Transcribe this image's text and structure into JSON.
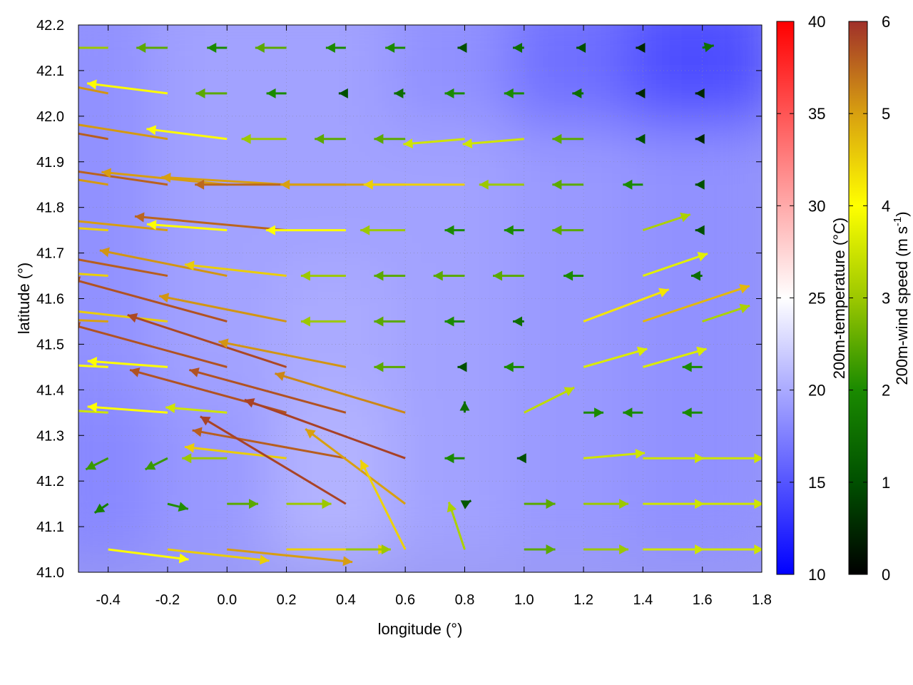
{
  "chart_data": {
    "type": "vector-field-map",
    "xlabel": "longitude (°)",
    "ylabel": "latitude (°)",
    "xlim": [
      -0.5,
      1.8
    ],
    "ylim": [
      41.0,
      42.2
    ],
    "xticks": [
      "-0.4",
      "-0.2",
      "0.0",
      "0.2",
      "0.4",
      "0.6",
      "0.8",
      "1.0",
      "1.2",
      "1.4",
      "1.6",
      "1.8"
    ],
    "yticks": [
      "41.0",
      "41.1",
      "41.2",
      "41.3",
      "41.4",
      "41.5",
      "41.6",
      "41.7",
      "41.8",
      "41.9",
      "42.0",
      "42.1",
      "42.2"
    ],
    "grid": true,
    "temperature_colorbar": {
      "label": "200m-temperature (°C)",
      "range": [
        10,
        40
      ],
      "ticks": [
        "10",
        "15",
        "20",
        "25",
        "30",
        "35",
        "40"
      ],
      "colors": {
        "low": "#0000ff",
        "mid": "#ffffff",
        "high": "#ff0000"
      }
    },
    "wind_colorbar": {
      "label": "200m-wind speed (m s",
      "label_sup": "-1",
      "label_end": ")",
      "range": [
        0,
        6
      ],
      "ticks": [
        "0",
        "1",
        "2",
        "3",
        "4",
        "5",
        "6"
      ],
      "colors": [
        "#000000",
        "#005000",
        "#1a8a00",
        "#9cc800",
        "#ffff00",
        "#d8a010",
        "#a0302a"
      ]
    },
    "temperature_field": {
      "lon": [
        -0.4,
        0.0,
        0.4,
        0.8,
        1.2,
        1.6
      ],
      "lat": [
        42.1,
        41.8,
        41.5,
        41.2
      ],
      "values_c": [
        [
          18.5,
          19.5,
          19.5,
          18.5,
          16.5,
          14.5
        ],
        [
          18.5,
          19.5,
          19.5,
          19.5,
          19,
          18.5
        ],
        [
          18.5,
          19.5,
          20,
          19.5,
          19,
          18.5
        ],
        [
          18,
          19,
          20.5,
          19.5,
          19,
          18.5
        ]
      ]
    },
    "wind_field": {
      "lon": [
        -0.4,
        -0.2,
        0.0,
        0.2,
        0.4,
        0.6,
        0.8,
        1.0,
        1.2,
        1.4,
        1.6
      ],
      "lat": [
        42.15,
        42.05,
        41.95,
        41.85,
        41.75,
        41.65,
        41.55,
        41.45,
        41.35,
        41.25,
        41.15,
        41.05
      ],
      "uv_ms": [
        [
          [
            -3,
            0
          ],
          [
            -2.5,
            0
          ],
          [
            -2,
            0
          ],
          [
            -2.5,
            0
          ],
          [
            -2,
            0
          ],
          [
            -2,
            0
          ],
          [
            -1,
            0
          ],
          [
            -1.5,
            0
          ],
          [
            -1,
            0
          ],
          [
            -0.5,
            0
          ],
          [
            1.5,
            0.3
          ]
        ],
        [
          [
            -5,
            1
          ],
          [
            -4,
            0.5
          ],
          [
            -2.5,
            0
          ],
          [
            -2,
            0
          ],
          [
            -1,
            0
          ],
          [
            -1.5,
            0
          ],
          [
            -2,
            0
          ],
          [
            -2,
            0
          ],
          [
            -1.5,
            0
          ],
          [
            -0.5,
            0
          ],
          [
            -0.5,
            0
          ]
        ],
        [
          [
            -5.5,
            1
          ],
          [
            -5,
            0.8
          ],
          [
            -4,
            0.5
          ],
          [
            -3,
            0
          ],
          [
            -2.5,
            0
          ],
          [
            -2.5,
            0
          ],
          [
            -3.5,
            -0.3
          ],
          [
            -3.5,
            -0.3
          ],
          [
            -2.5,
            0
          ],
          [
            -1,
            0
          ],
          [
            -0.5,
            0
          ]
        ],
        [
          [
            -5,
            0.8
          ],
          [
            -5.5,
            0.8
          ],
          [
            -5,
            0.5
          ],
          [
            -5,
            0.3
          ],
          [
            -5.5,
            0
          ],
          [
            -5,
            0
          ],
          [
            -4.5,
            0
          ],
          [
            -3,
            0
          ],
          [
            -2.5,
            0
          ],
          [
            -2,
            0
          ],
          [
            -1,
            0
          ]
        ],
        [
          [
            -4.5,
            0.3
          ],
          [
            -5,
            0.5
          ],
          [
            -4,
            0.3
          ],
          [
            -5.5,
            0.5
          ],
          [
            -4,
            0
          ],
          [
            -3,
            0
          ],
          [
            -2,
            0
          ],
          [
            -2,
            0
          ],
          [
            -2.5,
            0
          ],
          [
            3,
            1
          ],
          [
            -1,
            0
          ]
        ],
        [
          [
            -4.5,
            0.3
          ],
          [
            -5.5,
            1
          ],
          [
            -5,
            1
          ],
          [
            -4.5,
            0.5
          ],
          [
            -3,
            0
          ],
          [
            -2.5,
            0
          ],
          [
            -2.5,
            0
          ],
          [
            -2.5,
            0
          ],
          [
            -2,
            0
          ],
          [
            3.5,
            1.2
          ],
          [
            -1.5,
            0
          ]
        ],
        [
          [
            -5,
            0.2
          ],
          [
            -4.5,
            0.5
          ],
          [
            -5.5,
            1.5
          ],
          [
            -5,
            1
          ],
          [
            -3,
            0
          ],
          [
            -2.5,
            0
          ],
          [
            -2,
            0
          ],
          [
            -1.5,
            0
          ],
          [
            4,
            1.5
          ],
          [
            4.5,
            1.5
          ],
          [
            3,
            1
          ]
        ],
        [
          [
            -4,
            0.2
          ],
          [
            -4,
            0.3
          ],
          [
            -5.5,
            1.5
          ],
          [
            -5.5,
            1.8
          ],
          [
            -5,
            1
          ],
          [
            -2.5,
            0
          ],
          [
            -1,
            0
          ],
          [
            -2,
            0
          ],
          [
            3.5,
            1
          ],
          [
            3.5,
            1
          ],
          [
            -2,
            0
          ]
        ],
        [
          [
            -3.5,
            0.2
          ],
          [
            -4,
            0.3
          ],
          [
            -3.5,
            0.3
          ],
          [
            -5.5,
            1.5
          ],
          [
            -5.5,
            1.5
          ],
          [
            -5,
            1.5
          ],
          [
            0,
            1.5
          ],
          [
            3,
            1.5
          ],
          [
            2,
            0
          ],
          [
            -2,
            0
          ],
          [
            -2,
            0
          ]
        ],
        [
          [
            -2,
            -1
          ],
          [
            -2,
            -1
          ],
          [
            -3,
            0
          ],
          [
            -4.5,
            0.5
          ],
          [
            -5.5,
            1
          ],
          [
            -5.5,
            2
          ],
          [
            -2,
            0
          ],
          [
            -1,
            0
          ],
          [
            3.5,
            0.3
          ],
          [
            3.5,
            0
          ],
          [
            3.5,
            0
          ]
        ],
        [
          [
            -1.5,
            -1
          ],
          [
            2,
            -0.5
          ],
          [
            2.5,
            0
          ],
          [
            3,
            0
          ],
          [
            -5,
            3
          ],
          [
            -4,
            3
          ],
          [
            1,
            0.5
          ],
          [
            2.5,
            0
          ],
          [
            3,
            0
          ],
          [
            3.5,
            0
          ],
          [
            3.5,
            0
          ]
        ],
        [
          [
            4,
            -0.5
          ],
          [
            4.5,
            -0.5
          ],
          [
            5,
            -0.5
          ],
          [
            4.5,
            0
          ],
          [
            3,
            0
          ],
          [
            -2,
            4
          ],
          [
            -1,
            3
          ],
          [
            2.5,
            0
          ],
          [
            3,
            0
          ],
          [
            3.5,
            0
          ],
          [
            3.5,
            0
          ]
        ]
      ]
    }
  }
}
